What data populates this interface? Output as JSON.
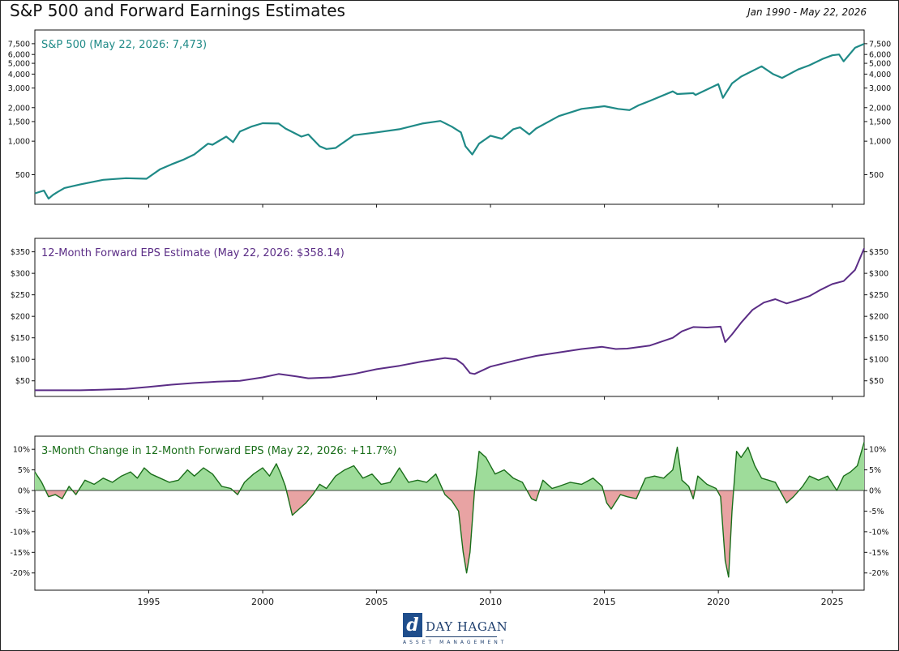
{
  "header": {
    "title": "S&P 500 and Forward Earnings Estimates",
    "date_range": "Jan 1990 - May 22, 2026"
  },
  "logo": {
    "mark": "d",
    "name": "DAY HAGAN",
    "tagline": "ASSET MANAGEMENT"
  },
  "colors": {
    "spx_line": "#1f8a87",
    "eps_line": "#5b2d86",
    "change_line": "#1a6e1a",
    "fill_positive": "#9edc9a",
    "fill_negative": "#e8a3a3"
  },
  "x_axis": {
    "min": 1990.0,
    "max": 2026.4,
    "ticks": [
      "1995",
      "2000",
      "2005",
      "2010",
      "2015",
      "2020",
      "2025"
    ]
  },
  "chart_data": [
    {
      "type": "line",
      "label": "S&P 500 (May 22, 2026: 7,473)",
      "scale": "log",
      "ylim": [
        300,
        9000
      ],
      "yticks": [
        "500",
        "1,000",
        "1,500",
        "2,000",
        "3,000",
        "4,000",
        "5,000",
        "6,000",
        "7,500"
      ],
      "ytick_values": [
        500,
        1000,
        1500,
        2000,
        3000,
        4000,
        5000,
        6000,
        7500
      ],
      "series": [
        {
          "x": [
            1990.0,
            1990.4,
            1990.6,
            1990.8,
            1991.0,
            1991.3,
            1992.0,
            1993.0,
            1994.0,
            1994.9,
            1995.5,
            1996.0,
            1996.5,
            1997.0,
            1997.6,
            1997.8,
            1998.4,
            1998.7,
            1999.0,
            1999.5,
            2000.0,
            2000.7,
            2001.0,
            2001.7,
            2002.0,
            2002.5,
            2002.8,
            2003.2,
            2004.0,
            2005.0,
            2006.0,
            2007.0,
            2007.8,
            2008.3,
            2008.7,
            2008.9,
            2009.2,
            2009.5,
            2010.0,
            2010.5,
            2011.0,
            2011.3,
            2011.7,
            2012.0,
            2013.0,
            2014.0,
            2015.0,
            2015.6,
            2016.1,
            2016.5,
            2017.0,
            2018.0,
            2018.2,
            2018.9,
            2019.0,
            2020.0,
            2020.2,
            2020.6,
            2021.0,
            2021.9,
            2022.4,
            2022.8,
            2023.5,
            2024.0,
            2024.6,
            2025.0,
            2025.3,
            2025.5,
            2026.0,
            2026.4
          ],
          "y": [
            340,
            360,
            305,
            330,
            350,
            380,
            410,
            450,
            465,
            460,
            560,
            620,
            680,
            760,
            950,
            930,
            1100,
            980,
            1220,
            1350,
            1450,
            1440,
            1300,
            1100,
            1150,
            900,
            850,
            870,
            1130,
            1200,
            1280,
            1440,
            1520,
            1350,
            1200,
            900,
            760,
            950,
            1120,
            1050,
            1280,
            1330,
            1150,
            1300,
            1680,
            1950,
            2060,
            1950,
            1900,
            2100,
            2300,
            2800,
            2650,
            2700,
            2600,
            3250,
            2450,
            3300,
            3800,
            4700,
            4000,
            3700,
            4400,
            4800,
            5500,
            5900,
            6000,
            5200,
            6900,
            7473
          ]
        }
      ]
    },
    {
      "type": "line",
      "label": "12-Month Forward EPS Estimate (May 22, 2026: $358.14)",
      "ylim": [
        25,
        370
      ],
      "yticks": [
        "$50",
        "$100",
        "$150",
        "$200",
        "$250",
        "$300",
        "$350"
      ],
      "ytick_values": [
        50,
        100,
        150,
        200,
        250,
        300,
        350
      ],
      "series": [
        {
          "x": [
            1990.0,
            1992.0,
            1994.0,
            1995.0,
            1996.0,
            1997.0,
            1998.0,
            1999.0,
            2000.0,
            2000.7,
            2001.5,
            2002.0,
            2003.0,
            2004.0,
            2005.0,
            2006.0,
            2007.0,
            2008.0,
            2008.5,
            2008.8,
            2009.1,
            2009.3,
            2010.0,
            2011.0,
            2012.0,
            2013.0,
            2014.0,
            2014.9,
            2015.5,
            2016.0,
            2017.0,
            2018.0,
            2018.4,
            2018.9,
            2019.5,
            2020.1,
            2020.3,
            2020.6,
            2021.0,
            2021.5,
            2022.0,
            2022.5,
            2023.0,
            2023.5,
            2024.0,
            2024.5,
            2025.0,
            2025.5,
            2026.0,
            2026.4
          ],
          "y": [
            28,
            28,
            31,
            36,
            41,
            45,
            48,
            50,
            58,
            66,
            60,
            56,
            58,
            66,
            77,
            85,
            95,
            103,
            100,
            88,
            68,
            66,
            83,
            96,
            108,
            116,
            124,
            129,
            124,
            125,
            132,
            150,
            165,
            175,
            174,
            176,
            140,
            158,
            185,
            215,
            232,
            240,
            230,
            238,
            247,
            262,
            275,
            282,
            308,
            358
          ]
        }
      ]
    },
    {
      "type": "area",
      "label": "3-Month Change in 12-Month Forward EPS (May 22, 2026: +11.7%)",
      "ylim": [
        -23,
        12
      ],
      "yticks": [
        "-20%",
        "-15%",
        "-10%",
        "-5%",
        "0%",
        "5%",
        "10%"
      ],
      "ytick_values": [
        -20,
        -15,
        -10,
        -5,
        0,
        5,
        10
      ],
      "series": [
        {
          "x": [
            1990.0,
            1990.3,
            1990.6,
            1990.9,
            1991.2,
            1991.5,
            1991.8,
            1992.2,
            1992.6,
            1993.0,
            1993.4,
            1993.8,
            1994.2,
            1994.5,
            1994.8,
            1995.1,
            1995.5,
            1995.9,
            1996.3,
            1996.7,
            1997.0,
            1997.4,
            1997.8,
            1998.2,
            1998.6,
            1998.9,
            1999.2,
            1999.6,
            2000.0,
            2000.3,
            2000.6,
            2000.8,
            2001.0,
            2001.3,
            2001.6,
            2001.9,
            2002.2,
            2002.5,
            2002.8,
            2003.2,
            2003.6,
            2004.0,
            2004.4,
            2004.8,
            2005.2,
            2005.6,
            2006.0,
            2006.4,
            2006.8,
            2007.2,
            2007.6,
            2008.0,
            2008.3,
            2008.6,
            2008.8,
            2008.95,
            2009.1,
            2009.3,
            2009.5,
            2009.8,
            2010.2,
            2010.6,
            2011.0,
            2011.4,
            2011.8,
            2012.0,
            2012.3,
            2012.7,
            2013.0,
            2013.5,
            2014.0,
            2014.5,
            2014.9,
            2015.1,
            2015.3,
            2015.7,
            2016.0,
            2016.4,
            2016.8,
            2017.2,
            2017.6,
            2018.0,
            2018.2,
            2018.4,
            2018.7,
            2018.9,
            2019.1,
            2019.5,
            2019.9,
            2020.1,
            2020.3,
            2020.45,
            2020.6,
            2020.8,
            2021.0,
            2021.3,
            2021.6,
            2021.9,
            2022.2,
            2022.5,
            2022.8,
            2023.0,
            2023.3,
            2023.7,
            2024.0,
            2024.4,
            2024.8,
            2025.2,
            2025.5,
            2025.8,
            2026.1,
            2026.4
          ],
          "y": [
            4.5,
            2.0,
            -1.5,
            -1.0,
            -2.0,
            1.0,
            -1.0,
            2.5,
            1.5,
            3.0,
            2.0,
            3.5,
            4.5,
            3.0,
            5.5,
            4.0,
            3.0,
            2.0,
            2.5,
            5.0,
            3.5,
            5.5,
            4.0,
            1.0,
            0.5,
            -1.0,
            2.0,
            4.0,
            5.5,
            3.5,
            6.5,
            4.0,
            1.0,
            -6.0,
            -4.5,
            -3.0,
            -1.0,
            1.5,
            0.5,
            3.5,
            5.0,
            6.0,
            3.0,
            4.0,
            1.5,
            2.0,
            5.5,
            2.0,
            2.5,
            2.0,
            4.0,
            -1.0,
            -2.5,
            -5.0,
            -15.0,
            -20.0,
            -15.0,
            0.0,
            9.5,
            8.0,
            4.0,
            5.0,
            3.0,
            2.0,
            -2.0,
            -2.5,
            2.5,
            0.5,
            1.0,
            2.0,
            1.5,
            3.0,
            1.0,
            -3.0,
            -4.5,
            -1.0,
            -1.5,
            -2.0,
            3.0,
            3.5,
            3.0,
            5.0,
            10.5,
            2.5,
            1.0,
            -2.0,
            3.5,
            1.5,
            0.5,
            -1.5,
            -17.0,
            -21.0,
            -5.0,
            9.5,
            8.0,
            10.5,
            6.0,
            3.0,
            2.5,
            2.0,
            -1.0,
            -3.0,
            -1.5,
            1.0,
            3.5,
            2.5,
            3.5,
            0.0,
            3.5,
            4.5,
            6.0,
            11.7
          ]
        }
      ]
    }
  ]
}
